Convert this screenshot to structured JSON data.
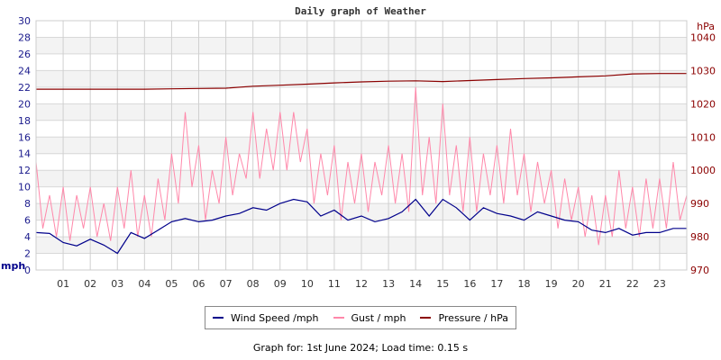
{
  "chart_data": {
    "type": "line",
    "title": "Daily graph of Weather",
    "ylabel_left": "mph",
    "ylabel_right": "hPa",
    "ylim_left": [
      0,
      30
    ],
    "ylim_right": [
      970,
      1045
    ],
    "yticks_left": [
      "0",
      "2",
      "4",
      "6",
      "8",
      "10",
      "12",
      "14",
      "16",
      "18",
      "20",
      "22",
      "24",
      "26",
      "28",
      "30"
    ],
    "yticks_right": [
      "970",
      "980",
      "990",
      "1000",
      "1010",
      "1020",
      "1030",
      "1040"
    ],
    "xticks": [
      "01",
      "02",
      "03",
      "04",
      "05",
      "06",
      "07",
      "08",
      "09",
      "10",
      "11",
      "12",
      "13",
      "14",
      "15",
      "16",
      "17",
      "18",
      "19",
      "20",
      "21",
      "22",
      "23"
    ],
    "xlim_hours": [
      0,
      24
    ],
    "grid": true,
    "legend_placement": "bottom",
    "series": [
      {
        "name": "Wind Speed /mph",
        "color": "#00008b",
        "axis": "left",
        "x_step_hours": 0.5,
        "values": [
          4.5,
          4.4,
          3.3,
          2.9,
          3.7,
          3.0,
          2.0,
          4.5,
          3.8,
          4.8,
          5.8,
          6.2,
          5.8,
          6.0,
          6.5,
          6.8,
          7.5,
          7.2,
          8.0,
          8.5,
          8.2,
          6.5,
          7.2,
          6.0,
          6.5,
          5.8,
          6.2,
          7.0,
          8.5,
          6.5,
          8.5,
          7.5,
          6.0,
          7.5,
          6.8,
          6.5,
          6.0,
          7.0,
          6.5,
          6.0,
          5.8,
          4.8,
          4.5,
          5.0,
          4.2,
          4.5,
          4.5,
          5.0,
          5.0
        ]
      },
      {
        "name": "Gust / mph",
        "color": "#ff88aa",
        "axis": "left",
        "x_step_hours": 0.25,
        "values": [
          13,
          5,
          9,
          4,
          10,
          3.5,
          9,
          5,
          10,
          4,
          8,
          3.5,
          10,
          5,
          12,
          4,
          9,
          4,
          11,
          6,
          14,
          8,
          19,
          10,
          15,
          6,
          12,
          8,
          16,
          9,
          14,
          11,
          19,
          11,
          17,
          12,
          19,
          12,
          19,
          13,
          17,
          8,
          14,
          9,
          15,
          6,
          13,
          8,
          14,
          7,
          13,
          9,
          15,
          8,
          14,
          7,
          22,
          9,
          16,
          8,
          20,
          9,
          15,
          7,
          16,
          7,
          14,
          9,
          15,
          8,
          17,
          9,
          14,
          7,
          13,
          8,
          12,
          5,
          11,
          6,
          10,
          4,
          9,
          3,
          9,
          4,
          12,
          5,
          10,
          4,
          11,
          5,
          11,
          5,
          13,
          6,
          9
        ]
      },
      {
        "name": "Pressure / hPa",
        "color": "#8b0000",
        "axis": "right",
        "x_step_hours": 1,
        "values": [
          1024.4,
          1024.4,
          1024.4,
          1024.4,
          1024.4,
          1024.5,
          1024.6,
          1024.7,
          1025.3,
          1025.6,
          1025.9,
          1026.3,
          1026.6,
          1026.8,
          1026.9,
          1026.7,
          1027.0,
          1027.3,
          1027.6,
          1027.8,
          1028.1,
          1028.4,
          1029.0,
          1029.1,
          1029.1
        ]
      }
    ]
  },
  "footer": "Graph for: 1st June 2024; Load time: 0.15 s"
}
